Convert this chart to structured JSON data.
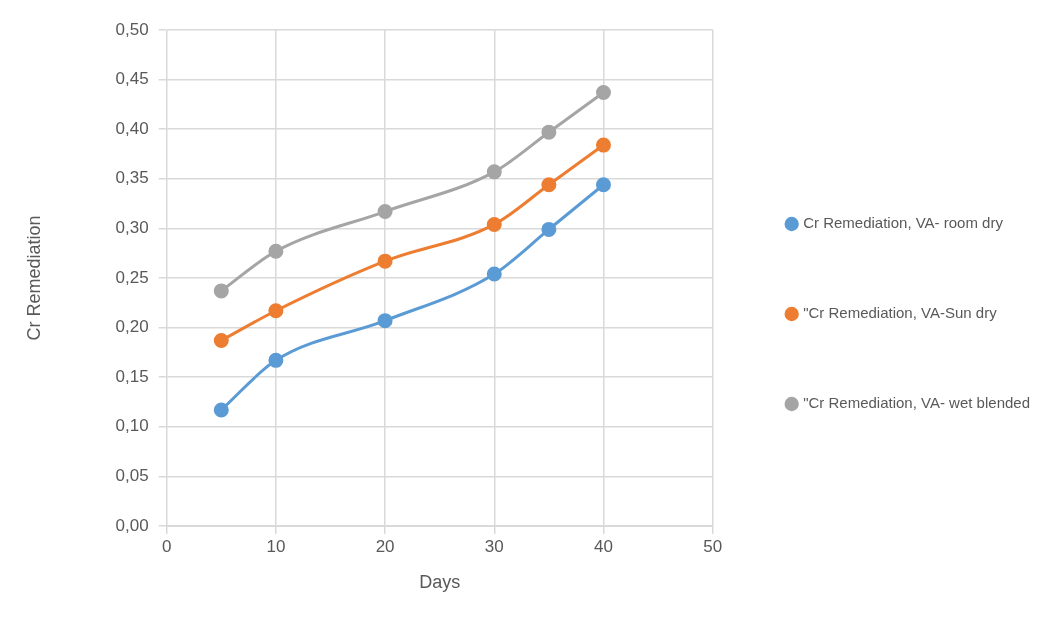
{
  "chart_data": {
    "type": "line",
    "xlabel": "Days",
    "ylabel": "Cr Remediation",
    "x": [
      5,
      10,
      20,
      30,
      35,
      40
    ],
    "series": [
      {
        "name": "Cr Remediation, VA- room dry",
        "color": "#5b9bd5",
        "values": [
          0.117,
          0.167,
          0.207,
          0.254,
          0.299,
          0.344
        ]
      },
      {
        "name": "\"Cr Remediation, VA-Sun dry",
        "color": "#ed7d31",
        "values": [
          0.187,
          0.217,
          0.267,
          0.304,
          0.344,
          0.384
        ]
      },
      {
        "name": "\"Cr Remediation, VA- wet blended",
        "color": "#a5a5a5",
        "values": [
          0.237,
          0.277,
          0.317,
          0.357,
          0.397,
          0.437
        ]
      }
    ],
    "xlim": [
      0,
      50
    ],
    "xticks": [
      0,
      10,
      20,
      30,
      40,
      50
    ],
    "ylim": [
      0,
      0.5
    ],
    "yticks": [
      {
        "value": 0,
        "label": "0,00"
      },
      {
        "value": 0.05,
        "label": "0,05"
      },
      {
        "value": 0.1,
        "label": "0,10"
      },
      {
        "value": 0.15,
        "label": "0,15"
      },
      {
        "value": 0.2,
        "label": "0,20"
      },
      {
        "value": 0.25,
        "label": "0,25"
      },
      {
        "value": 0.3,
        "label": "0,30"
      },
      {
        "value": 0.35,
        "label": "0,35"
      },
      {
        "value": 0.4,
        "label": "0,40"
      },
      {
        "value": 0.45,
        "label": "0,45"
      },
      {
        "value": 0.5,
        "label": "0,50"
      }
    ],
    "grid": true,
    "legend": "right",
    "marker": "circle",
    "line_style": "solid"
  }
}
